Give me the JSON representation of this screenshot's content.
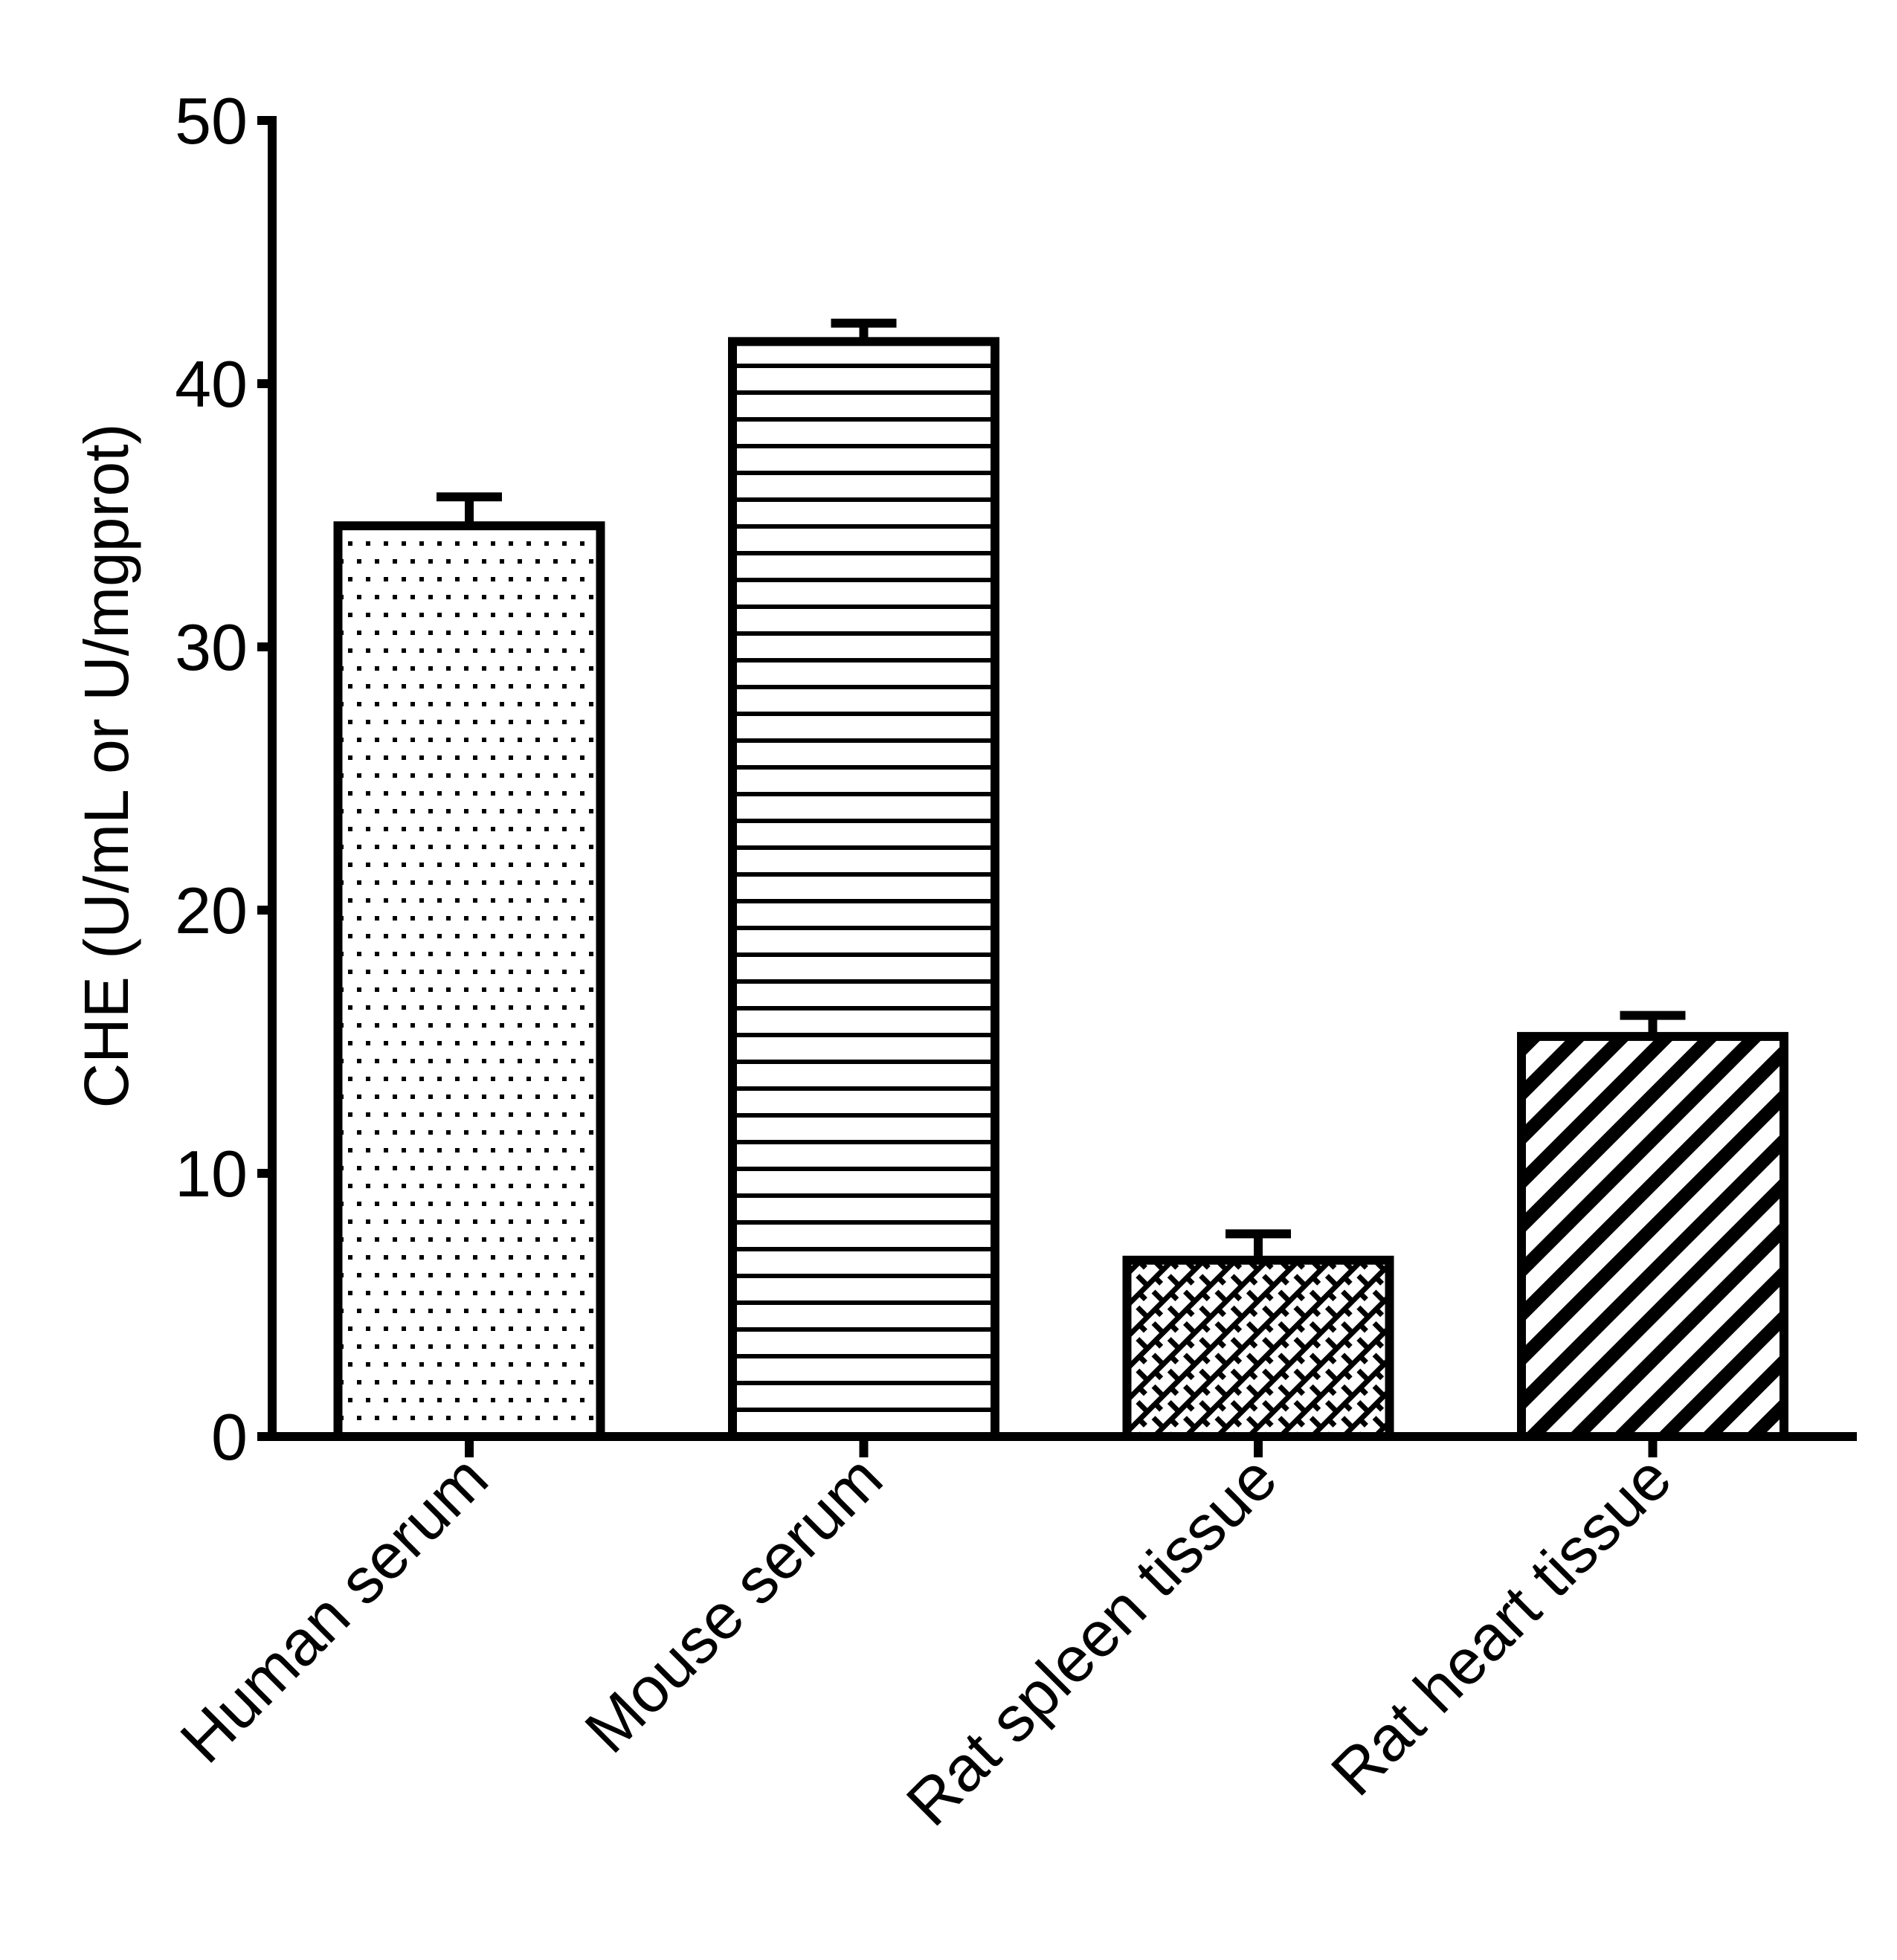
{
  "chart_data": {
    "type": "bar",
    "title": "",
    "xlabel": "",
    "ylabel": "CHE (U/mL or U/mgprot)",
    "ylim": [
      0,
      50
    ],
    "yticks": [
      0,
      10,
      20,
      30,
      40,
      50
    ],
    "grid": false,
    "legend": null,
    "categories": [
      "Human serum",
      "Mouse serum",
      "Rat spleen tissue",
      "Rat heart tissue"
    ],
    "values": [
      34.6,
      41.6,
      6.7,
      15.2
    ],
    "error_bars_upper": [
      1.1,
      0.7,
      1.0,
      0.8
    ],
    "bar_patterns": [
      "dots",
      "horizontal-lines",
      "diagonal-brick",
      "diagonal-stripes"
    ],
    "x_tick_label_rotation": -45
  },
  "colors": {
    "ink": "#000000",
    "background": "#ffffff"
  }
}
